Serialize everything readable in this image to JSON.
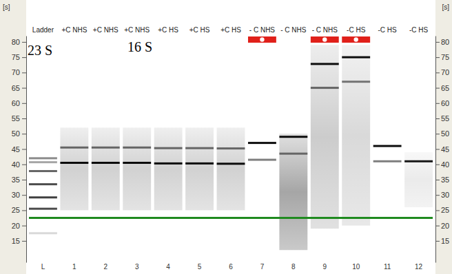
{
  "chart_data": {
    "type": "gel",
    "y_label": "[s]",
    "ylim": [
      8,
      82
    ],
    "yticks": [
      15,
      20,
      25,
      30,
      35,
      40,
      45,
      50,
      55,
      60,
      65,
      70,
      75,
      80
    ],
    "categories": [
      "Ladder",
      "+C NHS",
      "+C NHS",
      "+C NHS",
      "+C HS",
      "+C HS",
      "+C HS",
      "- C NHS",
      "- C NHS",
      "- C NHS",
      "-C HS",
      "-C HS",
      "-C HS"
    ],
    "lane_numbers": [
      "L",
      "1",
      "2",
      "3",
      "4",
      "5",
      "6",
      "7",
      "8",
      "9",
      "10",
      "11",
      "12"
    ],
    "lower_marker": 22.5,
    "annotations": [
      "23 S",
      "16 S"
    ],
    "lanes": [
      {
        "flagged": false,
        "smear": null,
        "smear_intensity": null,
        "bands": [
          {
            "time": 42,
            "intensity": 0.45
          },
          {
            "time": 40.7,
            "intensity": 0.35
          },
          {
            "time": 37.8,
            "intensity": 0.6
          },
          {
            "time": 33.5,
            "intensity": 0.7
          },
          {
            "time": 29.2,
            "intensity": 0.75
          },
          {
            "time": 25.5,
            "intensity": 0.7
          },
          {
            "time": 17.5,
            "intensity": 0.15
          }
        ]
      },
      {
        "flagged": false,
        "smear": [
          25,
          52
        ],
        "smear_intensity": 0.18,
        "bands": [
          {
            "time": 45.5,
            "intensity": 0.55
          },
          {
            "time": 40.5,
            "intensity": 0.95
          }
        ]
      },
      {
        "flagged": false,
        "smear": [
          25,
          52
        ],
        "smear_intensity": 0.18,
        "bands": [
          {
            "time": 45.5,
            "intensity": 0.55
          },
          {
            "time": 40.5,
            "intensity": 0.95
          }
        ]
      },
      {
        "flagged": false,
        "smear": [
          25,
          52
        ],
        "smear_intensity": 0.18,
        "bands": [
          {
            "time": 45.5,
            "intensity": 0.55
          },
          {
            "time": 40.5,
            "intensity": 0.95
          }
        ]
      },
      {
        "flagged": false,
        "smear": [
          25,
          52
        ],
        "smear_intensity": 0.18,
        "bands": [
          {
            "time": 45.3,
            "intensity": 0.55
          },
          {
            "time": 40.3,
            "intensity": 0.95
          }
        ]
      },
      {
        "flagged": false,
        "smear": [
          25,
          52
        ],
        "smear_intensity": 0.18,
        "bands": [
          {
            "time": 45.3,
            "intensity": 0.55
          },
          {
            "time": 40.3,
            "intensity": 0.95
          }
        ]
      },
      {
        "flagged": false,
        "smear": [
          25,
          52
        ],
        "smear_intensity": 0.18,
        "bands": [
          {
            "time": 45.2,
            "intensity": 0.55
          },
          {
            "time": 40.2,
            "intensity": 0.95
          }
        ]
      },
      {
        "flagged": true,
        "smear": null,
        "smear_intensity": null,
        "bands": [
          {
            "time": 47,
            "intensity": 0.95
          },
          {
            "time": 41.5,
            "intensity": 0.5
          }
        ]
      },
      {
        "flagged": false,
        "smear": [
          12,
          50
        ],
        "smear_intensity": 0.35,
        "bands": [
          {
            "time": 49,
            "intensity": 0.95
          },
          {
            "time": 43.5,
            "intensity": 0.5
          }
        ]
      },
      {
        "flagged": true,
        "smear": [
          19,
          79
        ],
        "smear_intensity": 0.2,
        "bands": [
          {
            "time": 72.8,
            "intensity": 0.95
          },
          {
            "time": 65,
            "intensity": 0.55
          }
        ]
      },
      {
        "flagged": true,
        "smear": [
          20,
          79
        ],
        "smear_intensity": 0.15,
        "bands": [
          {
            "time": 75,
            "intensity": 0.95
          },
          {
            "time": 67,
            "intensity": 0.5
          }
        ]
      },
      {
        "flagged": false,
        "smear": null,
        "smear_intensity": null,
        "bands": [
          {
            "time": 46,
            "intensity": 0.95
          },
          {
            "time": 41,
            "intensity": 0.5
          }
        ]
      },
      {
        "flagged": false,
        "smear": [
          26,
          44
        ],
        "smear_intensity": 0.08,
        "bands": [
          {
            "time": 41,
            "intensity": 0.9
          }
        ]
      }
    ]
  }
}
